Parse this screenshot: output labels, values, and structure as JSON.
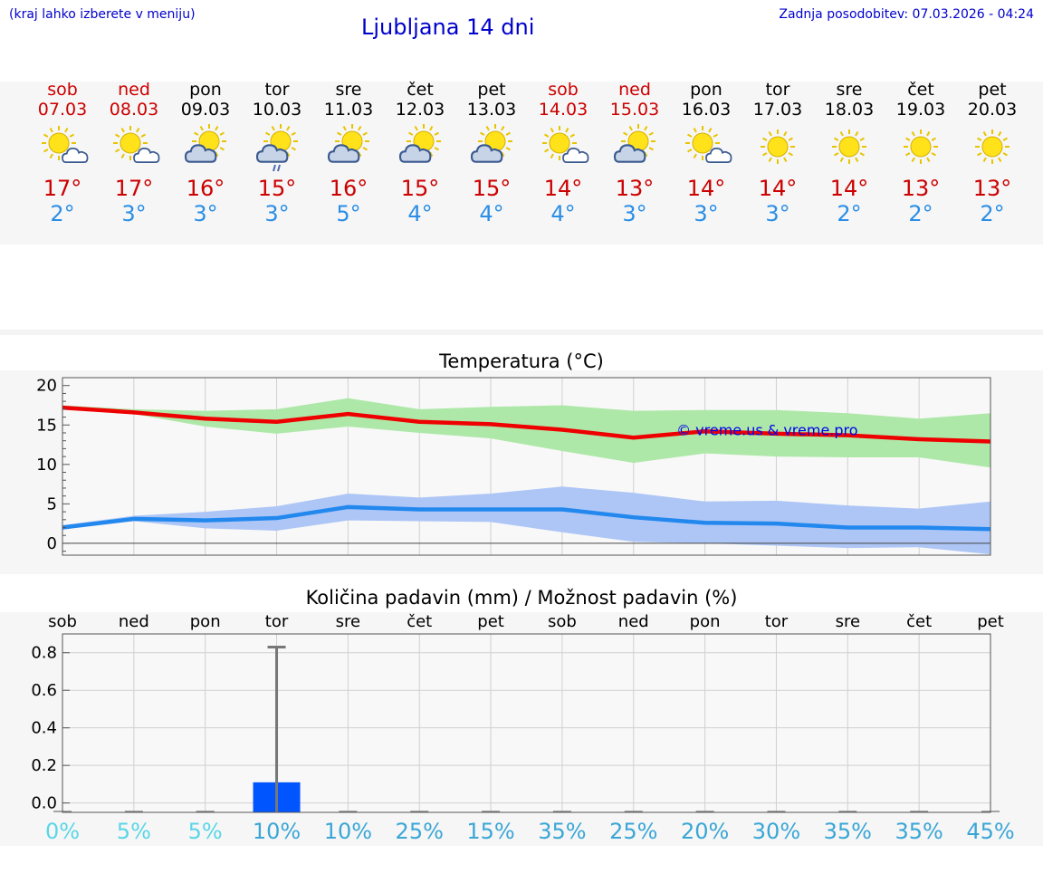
{
  "header": {
    "hint": "(kraj lahko izberete v meniju)",
    "title": "Ljubljana 14 dni",
    "updated": "Zadnja posodobitev: 07.03.2026 - 04:24"
  },
  "days": [
    {
      "name": "sob",
      "date": "07.03",
      "weekend": true,
      "icon": "sun-cloud",
      "max": "17°",
      "min": "2°",
      "pct": "0%",
      "pct_color": "#5ad6e6"
    },
    {
      "name": "ned",
      "date": "08.03",
      "weekend": true,
      "icon": "sun-cloud",
      "max": "17°",
      "min": "3°",
      "pct": "5%",
      "pct_color": "#5ad6e6"
    },
    {
      "name": "pon",
      "date": "09.03",
      "weekend": false,
      "icon": "cloud-sun",
      "max": "16°",
      "min": "3°",
      "pct": "5%",
      "pct_color": "#5ad6e6"
    },
    {
      "name": "tor",
      "date": "10.03",
      "weekend": false,
      "icon": "cloud-rain",
      "max": "15°",
      "min": "3°",
      "pct": "10%",
      "pct_color": "#3aa6d6"
    },
    {
      "name": "sre",
      "date": "11.03",
      "weekend": false,
      "icon": "cloud-sun",
      "max": "16°",
      "min": "5°",
      "pct": "10%",
      "pct_color": "#3aa6d6"
    },
    {
      "name": "čet",
      "date": "12.03",
      "weekend": false,
      "icon": "cloud-sun",
      "max": "15°",
      "min": "4°",
      "pct": "25%",
      "pct_color": "#3aa6d6"
    },
    {
      "name": "pet",
      "date": "13.03",
      "weekend": false,
      "icon": "cloud-sun",
      "max": "15°",
      "min": "4°",
      "pct": "15%",
      "pct_color": "#3aa6d6"
    },
    {
      "name": "sob",
      "date": "14.03",
      "weekend": true,
      "icon": "sun-cloud",
      "max": "14°",
      "min": "4°",
      "pct": "35%",
      "pct_color": "#3aa6d6"
    },
    {
      "name": "ned",
      "date": "15.03",
      "weekend": true,
      "icon": "cloud-sun",
      "max": "13°",
      "min": "3°",
      "pct": "25%",
      "pct_color": "#3aa6d6"
    },
    {
      "name": "pon",
      "date": "16.03",
      "weekend": false,
      "icon": "sun-cloud",
      "max": "14°",
      "min": "3°",
      "pct": "20%",
      "pct_color": "#3aa6d6"
    },
    {
      "name": "tor",
      "date": "17.03",
      "weekend": false,
      "icon": "sun",
      "max": "14°",
      "min": "3°",
      "pct": "30%",
      "pct_color": "#3aa6d6"
    },
    {
      "name": "sre",
      "date": "18.03",
      "weekend": false,
      "icon": "sun",
      "max": "14°",
      "min": "2°",
      "pct": "35%",
      "pct_color": "#3aa6d6"
    },
    {
      "name": "čet",
      "date": "19.03",
      "weekend": false,
      "icon": "sun",
      "max": "13°",
      "min": "2°",
      "pct": "35%",
      "pct_color": "#3aa6d6"
    },
    {
      "name": "pet",
      "date": "20.03",
      "weekend": false,
      "icon": "sun",
      "max": "13°",
      "min": "2°",
      "pct": "45%",
      "pct_color": "#3aa6d6"
    }
  ],
  "chart_data": [
    {
      "type": "line",
      "title": "Temperatura (°C)",
      "watermark": "© vreme.us & vreme.pro",
      "ylim": [
        -1.5,
        21
      ],
      "yticks": [
        0,
        5,
        10,
        15,
        20
      ],
      "x": [
        0,
        1,
        2,
        3,
        4,
        5,
        6,
        7,
        8,
        9,
        10,
        11,
        12,
        13
      ],
      "series": [
        {
          "name": "max",
          "color": "#ee0000",
          "values": [
            17.2,
            16.6,
            15.8,
            15.4,
            16.4,
            15.4,
            15.1,
            14.4,
            13.4,
            14.2,
            13.9,
            13.7,
            13.2,
            12.9
          ]
        },
        {
          "name": "min",
          "color": "#2288ee",
          "values": [
            2.0,
            3.1,
            2.9,
            3.2,
            4.6,
            4.3,
            4.3,
            4.3,
            3.3,
            2.6,
            2.5,
            2.0,
            2.0,
            1.8
          ]
        }
      ],
      "bands": [
        {
          "name": "max-range",
          "color": "#aee8a8",
          "upper": [
            17.5,
            17.0,
            16.8,
            17.0,
            18.4,
            17.0,
            17.3,
            17.5,
            16.8,
            16.9,
            16.9,
            16.5,
            15.8,
            16.5
          ],
          "lower": [
            17.0,
            16.4,
            14.8,
            13.9,
            14.8,
            14.0,
            13.3,
            11.7,
            10.2,
            11.4,
            11.0,
            10.9,
            10.9,
            9.6
          ]
        },
        {
          "name": "min-range",
          "color": "#aec6f6",
          "upper": [
            2.3,
            3.5,
            4.0,
            4.7,
            6.3,
            5.8,
            6.3,
            7.2,
            6.4,
            5.3,
            5.4,
            4.8,
            4.4,
            5.3
          ],
          "lower": [
            1.8,
            2.8,
            1.9,
            1.6,
            2.9,
            2.8,
            2.7,
            1.4,
            0.2,
            0.0,
            -0.3,
            -0.6,
            -0.5,
            -1.4
          ]
        }
      ]
    },
    {
      "type": "bar",
      "title": "Količina padavin (mm) / Možnost padavin (%)",
      "ylim": [
        -0.05,
        0.9
      ],
      "yticks": [
        0.0,
        0.2,
        0.4,
        0.6,
        0.8
      ],
      "ytick_labels": [
        "0.0",
        "0.2",
        "0.4",
        "0.6",
        "0.8"
      ],
      "x": [
        0,
        1,
        2,
        3,
        4,
        5,
        6,
        7,
        8,
        9,
        10,
        11,
        12,
        13
      ],
      "values": [
        0,
        0,
        0,
        0.11,
        0,
        0,
        0,
        0,
        0,
        0,
        0,
        0,
        0,
        0
      ],
      "error_high": [
        0,
        0,
        0,
        0.83,
        0,
        0,
        0,
        0,
        0,
        0,
        0,
        0,
        0,
        0
      ],
      "bar_color": "#0055ff",
      "categories": [
        "sob",
        "ned",
        "pon",
        "tor",
        "sre",
        "čet",
        "pet",
        "sob",
        "ned",
        "pon",
        "tor",
        "sre",
        "čet",
        "pet"
      ],
      "chance": [
        "0%",
        "5%",
        "5%",
        "10%",
        "10%",
        "25%",
        "15%",
        "35%",
        "25%",
        "20%",
        "30%",
        "35%",
        "35%",
        "45%"
      ]
    }
  ]
}
